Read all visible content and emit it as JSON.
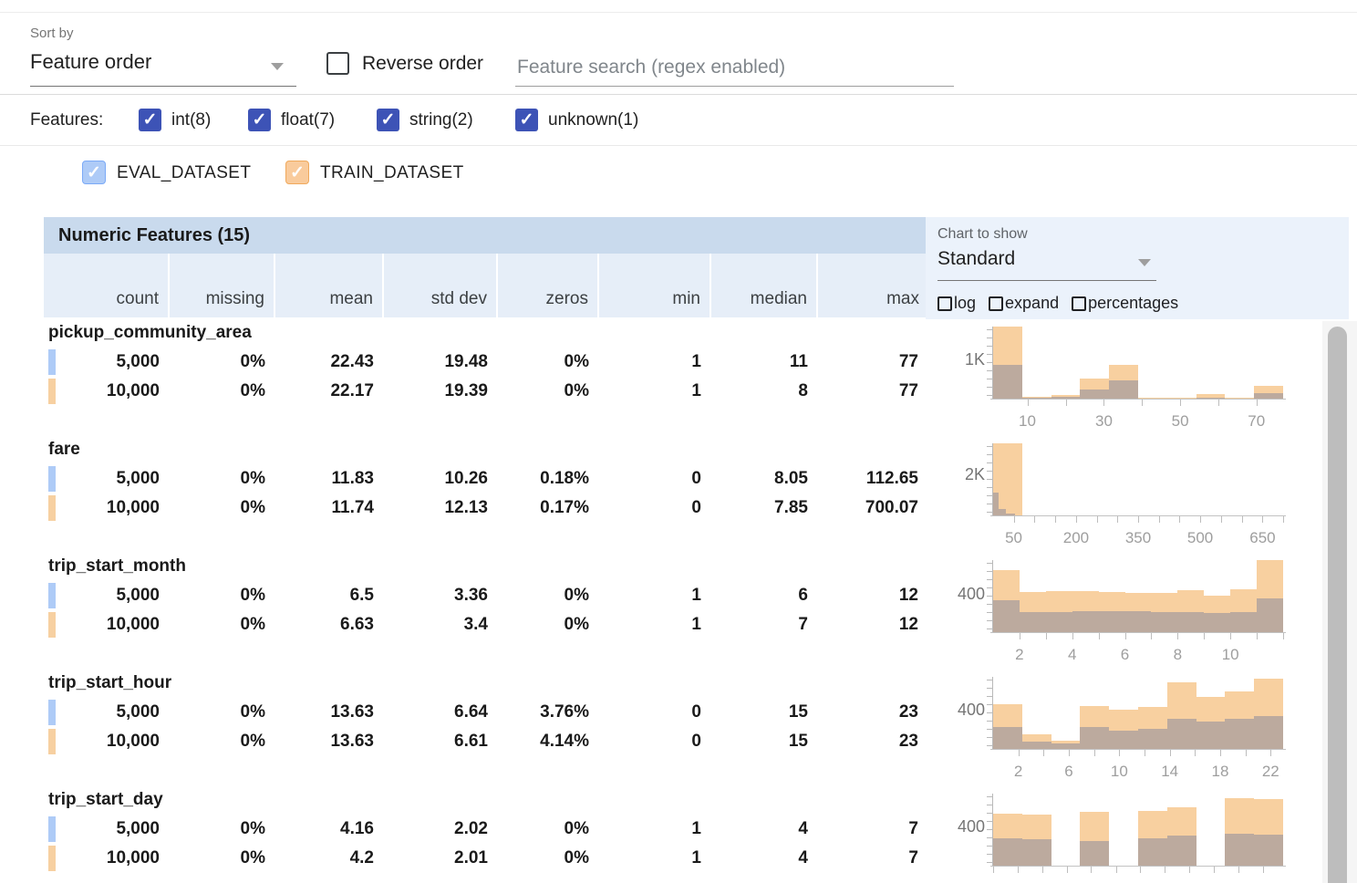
{
  "controls": {
    "sort_by_label": "Sort by",
    "sort_by_value": "Feature order",
    "reverse_label": "Reverse order",
    "search_placeholder": "Feature search (regex enabled)",
    "features_label": "Features:",
    "feature_types": [
      {
        "label": "int(8)",
        "checked": true
      },
      {
        "label": "float(7)",
        "checked": true
      },
      {
        "label": "string(2)",
        "checked": true
      },
      {
        "label": "unknown(1)",
        "checked": true
      }
    ],
    "datasets": [
      {
        "label": "EVAL_DATASET",
        "checked": true,
        "color": "#aecbf7",
        "border": "#7baaf7"
      },
      {
        "label": "TRAIN_DATASET",
        "checked": true,
        "color": "#f9cb9c",
        "border": "#f0a95c"
      }
    ]
  },
  "table": {
    "section_title": "Numeric Features (15)",
    "columns": [
      "count",
      "missing",
      "mean",
      "std dev",
      "zeros",
      "min",
      "median",
      "max"
    ],
    "features": [
      {
        "name": "pickup_community_area",
        "rows": [
          [
            "5,000",
            "0%",
            "22.43",
            "19.48",
            "0%",
            "1",
            "11",
            "77"
          ],
          [
            "10,000",
            "0%",
            "22.17",
            "19.39",
            "0%",
            "1",
            "8",
            "77"
          ]
        ]
      },
      {
        "name": "fare",
        "rows": [
          [
            "5,000",
            "0%",
            "11.83",
            "10.26",
            "0.18%",
            "0",
            "8.05",
            "112.65"
          ],
          [
            "10,000",
            "0%",
            "11.74",
            "12.13",
            "0.17%",
            "0",
            "7.85",
            "700.07"
          ]
        ]
      },
      {
        "name": "trip_start_month",
        "rows": [
          [
            "5,000",
            "0%",
            "6.5",
            "3.36",
            "0%",
            "1",
            "6",
            "12"
          ],
          [
            "10,000",
            "0%",
            "6.63",
            "3.4",
            "0%",
            "1",
            "7",
            "12"
          ]
        ]
      },
      {
        "name": "trip_start_hour",
        "rows": [
          [
            "5,000",
            "0%",
            "13.63",
            "6.64",
            "3.76%",
            "0",
            "15",
            "23"
          ],
          [
            "10,000",
            "0%",
            "13.63",
            "6.61",
            "4.14%",
            "0",
            "15",
            "23"
          ]
        ]
      },
      {
        "name": "trip_start_day",
        "rows": [
          [
            "5,000",
            "0%",
            "4.16",
            "2.02",
            "0%",
            "1",
            "4",
            "7"
          ],
          [
            "10,000",
            "0%",
            "4.2",
            "2.01",
            "0%",
            "1",
            "4",
            "7"
          ]
        ]
      }
    ]
  },
  "chart_panel": {
    "label": "Chart to show",
    "value": "Standard",
    "options": [
      "log",
      "expand",
      "percentages"
    ]
  },
  "colors": {
    "accent_indigo": "#3d53b6",
    "eval_swatch": "#aecbf7",
    "train_swatch": "#f7d0a1",
    "train_bar": "#f8d0a0",
    "eval_bar": "#bcaa9e",
    "section_header_bg": "#c9daed",
    "col_header_bg": "#e6eef8"
  },
  "chart_data": [
    {
      "type": "bar",
      "feature": "pickup_community_area",
      "legend": [
        "EVAL_DATASET",
        "TRAIN_DATASET"
      ],
      "x_range": [
        1,
        77
      ],
      "ylabel": {
        "text": "1K",
        "value": 1000
      },
      "ymax": 1900,
      "xticks": [
        {
          "f": 0.118,
          "label": "10"
        },
        {
          "f": 0.25,
          "label": ""
        },
        {
          "f": 0.382,
          "label": "30"
        },
        {
          "f": 0.513,
          "label": ""
        },
        {
          "f": 0.645,
          "label": "50"
        },
        {
          "f": 0.776,
          "label": ""
        },
        {
          "f": 0.908,
          "label": "70"
        }
      ],
      "series": [
        {
          "name": "TRAIN_DATASET",
          "bars": [
            {
              "x": 0.0,
              "w": 0.1,
              "c": 1900
            },
            {
              "x": 0.1,
              "w": 0.1,
              "c": 40
            },
            {
              "x": 0.2,
              "w": 0.1,
              "c": 90
            },
            {
              "x": 0.3,
              "w": 0.1,
              "c": 520
            },
            {
              "x": 0.4,
              "w": 0.1,
              "c": 900
            },
            {
              "x": 0.5,
              "w": 0.1,
              "c": 25
            },
            {
              "x": 0.6,
              "w": 0.1,
              "c": 20
            },
            {
              "x": 0.7,
              "w": 0.1,
              "c": 110
            },
            {
              "x": 0.8,
              "w": 0.1,
              "c": 25
            },
            {
              "x": 0.9,
              "w": 0.1,
              "c": 330
            }
          ]
        },
        {
          "name": "EVAL_DATASET",
          "bars": [
            {
              "x": 0.0,
              "w": 0.1,
              "c": 900
            },
            {
              "x": 0.1,
              "w": 0.1,
              "c": 20
            },
            {
              "x": 0.2,
              "w": 0.1,
              "c": 40
            },
            {
              "x": 0.3,
              "w": 0.1,
              "c": 240
            },
            {
              "x": 0.4,
              "w": 0.1,
              "c": 470
            },
            {
              "x": 0.5,
              "w": 0.1,
              "c": 10
            },
            {
              "x": 0.6,
              "w": 0.1,
              "c": 10
            },
            {
              "x": 0.7,
              "w": 0.1,
              "c": 30
            },
            {
              "x": 0.8,
              "w": 0.1,
              "c": 10
            },
            {
              "x": 0.9,
              "w": 0.1,
              "c": 150
            }
          ]
        }
      ]
    },
    {
      "type": "bar",
      "feature": "fare",
      "legend": [
        "EVAL_DATASET",
        "TRAIN_DATASET"
      ],
      "x_range": [
        0,
        700
      ],
      "ylabel": {
        "text": "2K",
        "value": 2000
      },
      "ymax": 3600,
      "xticks": [
        {
          "f": 0.071,
          "label": "50"
        },
        {
          "f": 0.143,
          "label": ""
        },
        {
          "f": 0.214,
          "label": ""
        },
        {
          "f": 0.286,
          "label": "200"
        },
        {
          "f": 0.357,
          "label": ""
        },
        {
          "f": 0.429,
          "label": ""
        },
        {
          "f": 0.5,
          "label": "350"
        },
        {
          "f": 0.571,
          "label": ""
        },
        {
          "f": 0.643,
          "label": ""
        },
        {
          "f": 0.714,
          "label": "500"
        },
        {
          "f": 0.786,
          "label": ""
        },
        {
          "f": 0.857,
          "label": ""
        },
        {
          "f": 0.929,
          "label": "650"
        },
        {
          "f": 1.0,
          "label": ""
        }
      ],
      "series": [
        {
          "name": "TRAIN_DATASET",
          "bars": [
            {
              "x": 0.0,
              "w": 0.1,
              "c": 3600
            }
          ]
        },
        {
          "name": "EVAL_DATASET",
          "bars": [
            {
              "x": 0.0,
              "w": 0.02,
              "c": 1150
            },
            {
              "x": 0.02,
              "w": 0.024,
              "c": 300
            },
            {
              "x": 0.044,
              "w": 0.03,
              "c": 90
            }
          ]
        }
      ]
    },
    {
      "type": "bar",
      "feature": "trip_start_month",
      "legend": [
        "EVAL_DATASET",
        "TRAIN_DATASET"
      ],
      "x_range": [
        1,
        12
      ],
      "ylabel": {
        "text": "400",
        "value": 400
      },
      "ymax": 770,
      "xticks": [
        {
          "f": 0.0909,
          "label": "2"
        },
        {
          "f": 0.1818,
          "label": ""
        },
        {
          "f": 0.2727,
          "label": "4"
        },
        {
          "f": 0.3636,
          "label": ""
        },
        {
          "f": 0.4545,
          "label": "6"
        },
        {
          "f": 0.5455,
          "label": ""
        },
        {
          "f": 0.6364,
          "label": "8"
        },
        {
          "f": 0.7273,
          "label": ""
        },
        {
          "f": 0.8182,
          "label": "10"
        },
        {
          "f": 0.9091,
          "label": ""
        },
        {
          "f": 1.0,
          "label": ""
        }
      ],
      "series": [
        {
          "name": "TRAIN_DATASET",
          "bars": [
            {
              "x": 0.0,
              "w": 0.0909,
              "c": 660
            },
            {
              "x": 0.0909,
              "w": 0.0909,
              "c": 425
            },
            {
              "x": 0.1818,
              "w": 0.0909,
              "c": 440
            },
            {
              "x": 0.2727,
              "w": 0.0909,
              "c": 435
            },
            {
              "x": 0.3636,
              "w": 0.0909,
              "c": 430
            },
            {
              "x": 0.4545,
              "w": 0.0909,
              "c": 420
            },
            {
              "x": 0.5455,
              "w": 0.0909,
              "c": 415
            },
            {
              "x": 0.6364,
              "w": 0.0909,
              "c": 445
            },
            {
              "x": 0.7273,
              "w": 0.0909,
              "c": 390
            },
            {
              "x": 0.8182,
              "w": 0.0909,
              "c": 460
            },
            {
              "x": 0.9091,
              "w": 0.0909,
              "c": 770
            }
          ]
        },
        {
          "name": "EVAL_DATASET",
          "bars": [
            {
              "x": 0.0,
              "w": 0.0909,
              "c": 345
            },
            {
              "x": 0.0909,
              "w": 0.0909,
              "c": 210
            },
            {
              "x": 0.1818,
              "w": 0.0909,
              "c": 215
            },
            {
              "x": 0.2727,
              "w": 0.0909,
              "c": 220
            },
            {
              "x": 0.3636,
              "w": 0.0909,
              "c": 225
            },
            {
              "x": 0.4545,
              "w": 0.0909,
              "c": 220
            },
            {
              "x": 0.5455,
              "w": 0.0909,
              "c": 210
            },
            {
              "x": 0.6364,
              "w": 0.0909,
              "c": 215
            },
            {
              "x": 0.7273,
              "w": 0.0909,
              "c": 205
            },
            {
              "x": 0.8182,
              "w": 0.0909,
              "c": 215
            },
            {
              "x": 0.9091,
              "w": 0.0909,
              "c": 360
            }
          ]
        }
      ]
    },
    {
      "type": "bar",
      "feature": "trip_start_hour",
      "legend": [
        "EVAL_DATASET",
        "TRAIN_DATASET"
      ],
      "x_range": [
        0,
        23
      ],
      "ylabel": {
        "text": "400",
        "value": 400
      },
      "ymax": 760,
      "xticks": [
        {
          "f": 0.087,
          "label": "2"
        },
        {
          "f": 0.174,
          "label": ""
        },
        {
          "f": 0.261,
          "label": "6"
        },
        {
          "f": 0.348,
          "label": ""
        },
        {
          "f": 0.435,
          "label": "10"
        },
        {
          "f": 0.522,
          "label": ""
        },
        {
          "f": 0.609,
          "label": "14"
        },
        {
          "f": 0.696,
          "label": ""
        },
        {
          "f": 0.783,
          "label": "18"
        },
        {
          "f": 0.87,
          "label": ""
        },
        {
          "f": 0.957,
          "label": "22"
        }
      ],
      "series": [
        {
          "name": "TRAIN_DATASET",
          "bars": [
            {
              "x": 0.0,
              "w": 0.1,
              "c": 470
            },
            {
              "x": 0.1,
              "w": 0.1,
              "c": 150
            },
            {
              "x": 0.2,
              "w": 0.1,
              "c": 90
            },
            {
              "x": 0.3,
              "w": 0.1,
              "c": 455
            },
            {
              "x": 0.4,
              "w": 0.1,
              "c": 410
            },
            {
              "x": 0.5,
              "w": 0.1,
              "c": 440
            },
            {
              "x": 0.6,
              "w": 0.1,
              "c": 700
            },
            {
              "x": 0.7,
              "w": 0.1,
              "c": 545
            },
            {
              "x": 0.8,
              "w": 0.1,
              "c": 610
            },
            {
              "x": 0.9,
              "w": 0.1,
              "c": 740
            }
          ]
        },
        {
          "name": "EVAL_DATASET",
          "bars": [
            {
              "x": 0.0,
              "w": 0.1,
              "c": 230
            },
            {
              "x": 0.1,
              "w": 0.1,
              "c": 75
            },
            {
              "x": 0.2,
              "w": 0.1,
              "c": 60
            },
            {
              "x": 0.3,
              "w": 0.1,
              "c": 230
            },
            {
              "x": 0.4,
              "w": 0.1,
              "c": 190
            },
            {
              "x": 0.5,
              "w": 0.1,
              "c": 215
            },
            {
              "x": 0.6,
              "w": 0.1,
              "c": 320
            },
            {
              "x": 0.7,
              "w": 0.1,
              "c": 290
            },
            {
              "x": 0.8,
              "w": 0.1,
              "c": 320
            },
            {
              "x": 0.9,
              "w": 0.1,
              "c": 350
            }
          ]
        }
      ]
    },
    {
      "type": "bar",
      "feature": "trip_start_day",
      "legend": [
        "EVAL_DATASET",
        "TRAIN_DATASET"
      ],
      "x_range": [
        1,
        7
      ],
      "ylabel": {
        "text": "400",
        "value": 400
      },
      "ymax": 760,
      "xticks": [
        {
          "f": 0.0,
          "label": ""
        },
        {
          "f": 0.085,
          "label": ""
        },
        {
          "f": 0.169,
          "label": ""
        },
        {
          "f": 0.254,
          "label": ""
        },
        {
          "f": 0.338,
          "label": ""
        },
        {
          "f": 0.423,
          "label": ""
        },
        {
          "f": 0.507,
          "label": ""
        },
        {
          "f": 0.592,
          "label": ""
        },
        {
          "f": 0.676,
          "label": ""
        },
        {
          "f": 0.761,
          "label": ""
        },
        {
          "f": 0.845,
          "label": ""
        },
        {
          "f": 0.93,
          "label": ""
        }
      ],
      "series": [
        {
          "name": "TRAIN_DATASET",
          "bars": [
            {
              "x": 0.0,
              "w": 0.1,
              "c": 545
            },
            {
              "x": 0.1,
              "w": 0.1,
              "c": 540
            },
            {
              "x": 0.3,
              "w": 0.1,
              "c": 570
            },
            {
              "x": 0.5,
              "w": 0.1,
              "c": 575
            },
            {
              "x": 0.6,
              "w": 0.1,
              "c": 620
            },
            {
              "x": 0.8,
              "w": 0.1,
              "c": 710
            },
            {
              "x": 0.9,
              "w": 0.1,
              "c": 705
            }
          ]
        },
        {
          "name": "EVAL_DATASET",
          "bars": [
            {
              "x": 0.0,
              "w": 0.1,
              "c": 285
            },
            {
              "x": 0.1,
              "w": 0.1,
              "c": 280
            },
            {
              "x": 0.3,
              "w": 0.1,
              "c": 260
            },
            {
              "x": 0.5,
              "w": 0.1,
              "c": 285
            },
            {
              "x": 0.6,
              "w": 0.1,
              "c": 320
            },
            {
              "x": 0.8,
              "w": 0.1,
              "c": 335
            },
            {
              "x": 0.9,
              "w": 0.1,
              "c": 325
            }
          ]
        }
      ]
    }
  ]
}
